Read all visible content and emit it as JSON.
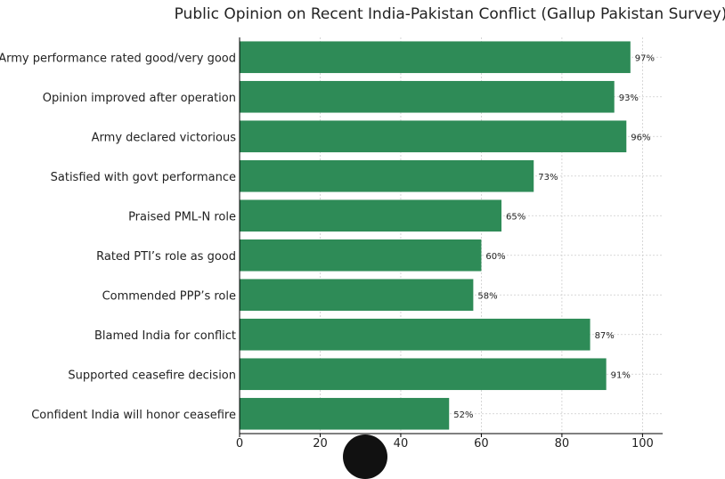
{
  "chart_data": {
    "type": "bar",
    "orientation": "horizontal",
    "title": "Public Opinion on Recent India-Pakistan Conflict (Gallup Pakistan Survey)",
    "xlabel": "",
    "ylabel": "",
    "categories": [
      "Army performance rated good/very good",
      "Opinion improved after operation",
      "Army declared victorious",
      "Satisfied with govt performance",
      "Praised PML-N role",
      "Rated PTI’s role as good",
      "Commended PPP’s role",
      "Blamed India for conflict",
      "Supported ceasefire decision",
      "Confident India will honor ceasefire"
    ],
    "values": [
      97,
      93,
      96,
      73,
      65,
      60,
      58,
      87,
      91,
      52
    ],
    "value_labels": [
      "97%",
      "93%",
      "96%",
      "73%",
      "65%",
      "60%",
      "58%",
      "87%",
      "91%",
      "52%"
    ],
    "xlim": [
      0,
      105
    ],
    "xticks": [
      0,
      20,
      40,
      60,
      80,
      100
    ],
    "grid": true,
    "bar_color": "#2e8b57"
  }
}
